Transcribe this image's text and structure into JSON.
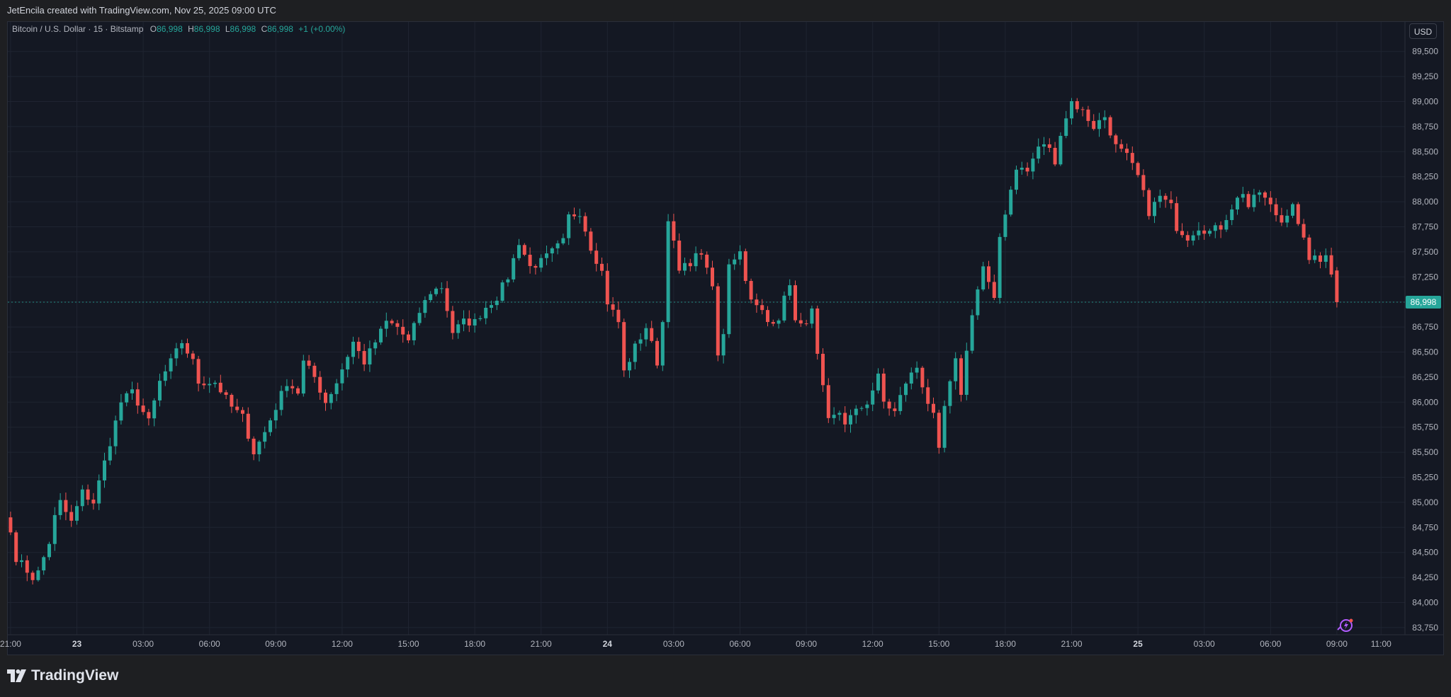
{
  "header": {
    "credit": "JetEncila created with TradingView.com, Nov 25, 2025 09:00 UTC"
  },
  "legend": {
    "symbol": "Bitcoin / U.S. Dollar · 15 · Bitstamp",
    "open_label": "O",
    "open": "86,998",
    "high_label": "H",
    "high": "86,998",
    "low_label": "L",
    "low": "86,998",
    "close_label": "C",
    "close": "86,998",
    "change": "+1 (+0.00%)"
  },
  "currency": "USD",
  "last_price": "86,998",
  "brand": {
    "name": "TradingView"
  },
  "icons": {
    "logo": "tradingview-logo-icon",
    "ai": "ai-assistant-icon"
  },
  "colors": {
    "up": "#26a69a",
    "down": "#ef5350",
    "background": "#141823",
    "grid": "#1f2431",
    "price_label": "#26a69a"
  },
  "chart_data": {
    "type": "candlestick",
    "title": "Bitcoin / U.S. Dollar · 15 · Bitstamp",
    "interval": "15",
    "grid": true,
    "ylim": [
      83700,
      89700
    ],
    "y_ticks": [
      "89,500",
      "89,250",
      "89,000",
      "88,750",
      "88,500",
      "88,250",
      "88,000",
      "87,750",
      "87,500",
      "87,250",
      "87,000",
      "86,750",
      "86,500",
      "86,250",
      "86,000",
      "85,750",
      "85,500",
      "85,250",
      "85,000",
      "84,750",
      "84,500",
      "84,250",
      "84,000",
      "83,750"
    ],
    "y_tick_values": [
      89500,
      89250,
      89000,
      88750,
      88500,
      88250,
      88000,
      87750,
      87500,
      87250,
      87000,
      86750,
      86500,
      86250,
      86000,
      85750,
      85500,
      85250,
      85000,
      84750,
      84500,
      84250,
      84000,
      83750
    ],
    "x_ticks": [
      "21:00",
      "23",
      "03:00",
      "06:00",
      "09:00",
      "12:00",
      "15:00",
      "18:00",
      "21:00",
      "24",
      "03:00",
      "06:00",
      "09:00",
      "12:00",
      "15:00",
      "18:00",
      "21:00",
      "25",
      "03:00",
      "06:00",
      "09:00",
      "11:00"
    ],
    "x_tick_index": [
      0,
      12,
      24,
      36,
      48,
      60,
      72,
      84,
      96,
      108,
      120,
      132,
      144,
      156,
      168,
      180,
      192,
      204,
      216,
      228,
      240,
      248
    ],
    "last_price": 86998,
    "anchors": [
      [
        0,
        84700
      ],
      [
        1,
        84450
      ],
      [
        4,
        84250
      ],
      [
        5,
        84300
      ],
      [
        7,
        84600
      ],
      [
        8,
        84850
      ],
      [
        9,
        85000
      ],
      [
        11,
        84800
      ],
      [
        13,
        85100
      ],
      [
        15,
        85000
      ],
      [
        17,
        85400
      ],
      [
        20,
        86000
      ],
      [
        22,
        86100
      ],
      [
        25,
        85800
      ],
      [
        27,
        86200
      ],
      [
        30,
        86500
      ],
      [
        31,
        86600
      ],
      [
        33,
        86400
      ],
      [
        34,
        86200
      ],
      [
        37,
        86200
      ],
      [
        40,
        85950
      ],
      [
        42,
        85850
      ],
      [
        44,
        85500
      ],
      [
        46,
        85700
      ],
      [
        48,
        85950
      ],
      [
        50,
        86200
      ],
      [
        52,
        86100
      ],
      [
        53,
        86400
      ],
      [
        55,
        86250
      ],
      [
        57,
        86000
      ],
      [
        59,
        86200
      ],
      [
        62,
        86600
      ],
      [
        64,
        86400
      ],
      [
        66,
        86600
      ],
      [
        68,
        86800
      ],
      [
        70,
        86750
      ],
      [
        72,
        86600
      ],
      [
        74,
        86900
      ],
      [
        76,
        87100
      ],
      [
        78,
        87150
      ],
      [
        80,
        86700
      ],
      [
        82,
        86800
      ],
      [
        84,
        86800
      ],
      [
        86,
        86950
      ],
      [
        88,
        87050
      ],
      [
        90,
        87250
      ],
      [
        92,
        87600
      ],
      [
        94,
        87350
      ],
      [
        96,
        87400
      ],
      [
        98,
        87500
      ],
      [
        100,
        87600
      ],
      [
        101,
        87850
      ],
      [
        103,
        87900
      ],
      [
        105,
        87550
      ],
      [
        107,
        87300
      ],
      [
        108,
        87000
      ],
      [
        110,
        86800
      ],
      [
        111,
        86300
      ],
      [
        113,
        86550
      ],
      [
        115,
        86750
      ],
      [
        117,
        86400
      ],
      [
        118,
        86800
      ],
      [
        119,
        87850
      ],
      [
        121,
        87300
      ],
      [
        123,
        87400
      ],
      [
        125,
        87500
      ],
      [
        126,
        87300
      ],
      [
        127,
        87150
      ],
      [
        128,
        86450
      ],
      [
        129,
        86700
      ],
      [
        130,
        87400
      ],
      [
        132,
        87500
      ],
      [
        134,
        87000
      ],
      [
        136,
        86900
      ],
      [
        137,
        86800
      ],
      [
        139,
        86850
      ],
      [
        141,
        87200
      ],
      [
        142,
        86800
      ],
      [
        143,
        86750
      ],
      [
        145,
        86900
      ],
      [
        146,
        86450
      ],
      [
        148,
        85800
      ],
      [
        150,
        85900
      ],
      [
        151,
        85800
      ],
      [
        153,
        85900
      ],
      [
        155,
        86000
      ],
      [
        157,
        86250
      ],
      [
        158,
        86000
      ],
      [
        160,
        85900
      ],
      [
        162,
        86200
      ],
      [
        164,
        86350
      ],
      [
        166,
        86000
      ],
      [
        167,
        85850
      ],
      [
        168,
        85500
      ],
      [
        169,
        85950
      ],
      [
        171,
        86400
      ],
      [
        172,
        86100
      ],
      [
        173,
        86500
      ],
      [
        174,
        86900
      ],
      [
        176,
        87350
      ],
      [
        178,
        87000
      ],
      [
        179,
        87650
      ],
      [
        180,
        87900
      ],
      [
        182,
        88350
      ],
      [
        184,
        88300
      ],
      [
        186,
        88550
      ],
      [
        188,
        88550
      ],
      [
        189,
        88350
      ],
      [
        190,
        88700
      ],
      [
        192,
        89000
      ],
      [
        194,
        88900
      ],
      [
        196,
        88750
      ],
      [
        198,
        88850
      ],
      [
        200,
        88550
      ],
      [
        202,
        88450
      ],
      [
        204,
        88250
      ],
      [
        206,
        87900
      ],
      [
        208,
        88050
      ],
      [
        210,
        87950
      ],
      [
        211,
        87750
      ],
      [
        213,
        87650
      ],
      [
        215,
        87750
      ],
      [
        217,
        87700
      ],
      [
        219,
        87750
      ],
      [
        221,
        87950
      ],
      [
        223,
        88100
      ],
      [
        224,
        87950
      ],
      [
        226,
        88100
      ],
      [
        228,
        87950
      ],
      [
        230,
        87800
      ],
      [
        232,
        88000
      ],
      [
        233,
        87750
      ],
      [
        235,
        87450
      ],
      [
        237,
        87400
      ],
      [
        238,
        87500
      ],
      [
        239,
        87300
      ],
      [
        240,
        86998
      ]
    ],
    "note": "values digitised from chart: 241 fifteen-minute candles from Nov 22 21:00 to Nov 25 09:00 UTC; open/high/low/close per bar interpolated from the traced price path"
  }
}
